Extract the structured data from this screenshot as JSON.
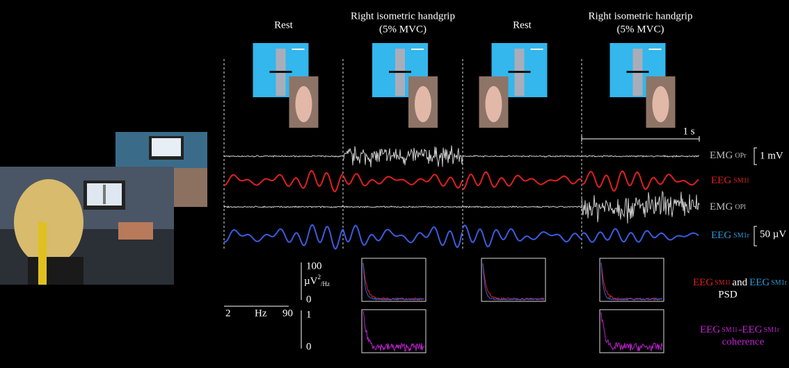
{
  "phases": [
    {
      "label": "Rest"
    },
    {
      "label": "Right isometric handgrip",
      "sublabel": "(5% MVC)"
    },
    {
      "label": "Rest"
    },
    {
      "label": "Right isometric handgrip",
      "sublabel": "(5% MVC)"
    }
  ],
  "time_scale": "1 s",
  "traces": [
    {
      "name": "EMG",
      "site": "OPr",
      "scale": "1 mV"
    },
    {
      "name": "EEG",
      "site": "SM1l"
    },
    {
      "name": "EMG",
      "site": "OPl"
    },
    {
      "name": "EEG",
      "site": "SM1r",
      "scale": "50 µV"
    }
  ],
  "psd_axis": {
    "max": "100",
    "unit": "µV",
    "power": "2",
    "per": "/Hz",
    "min": "0"
  },
  "coherence_axis": {
    "max": "1",
    "min": "0"
  },
  "freq_axis": {
    "start": "2",
    "unit": "Hz",
    "end": "90"
  },
  "psd_legend": {
    "left": "EEG",
    "left_site": "SM1l",
    "joiner": "and",
    "right": "EEG",
    "right_site": "SM1r",
    "caption": "PSD"
  },
  "coherence_legend": {
    "left": "EEG",
    "left_site": "SM1l",
    "dash": "-",
    "right": "EEG",
    "right_site": "SM1r",
    "caption": "coherence"
  }
}
